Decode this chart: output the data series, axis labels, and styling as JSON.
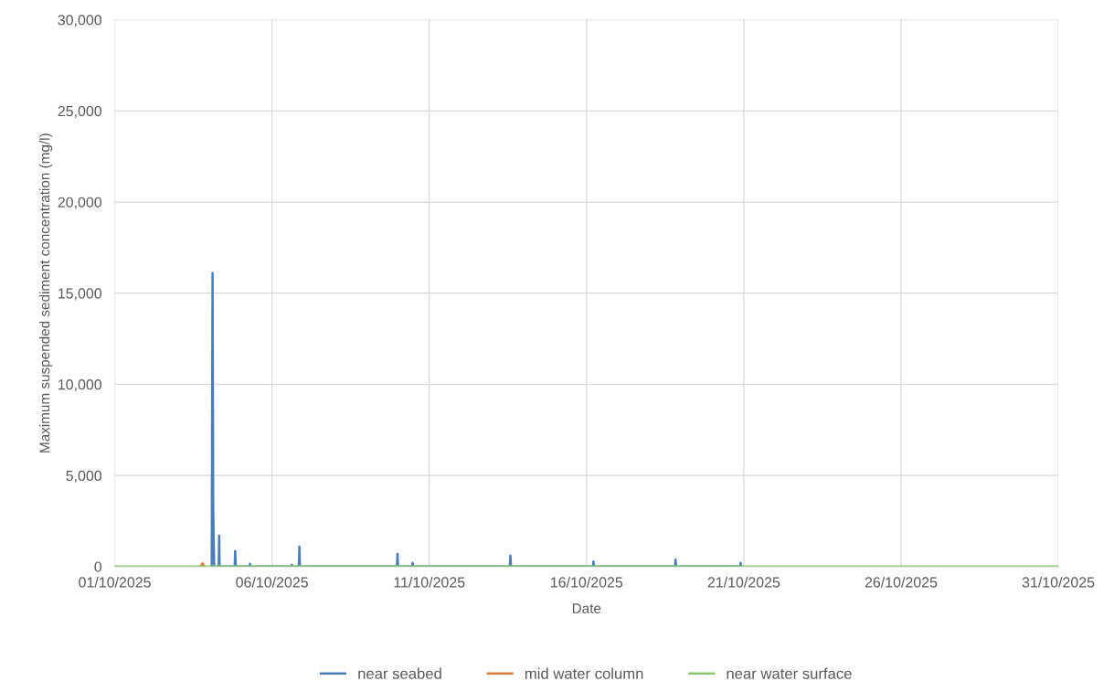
{
  "chart_data": {
    "type": "line",
    "xlabel": "Date",
    "ylabel": "Maximum suspended sediment concentration (mg/l)",
    "x": [
      "2025-10-04T02:00",
      "2025-10-04T02:38",
      "2025-10-04T03:10",
      "2025-10-04T03:50",
      "2025-10-04T07:20",
      "2025-10-04T07:40",
      "2025-10-04T08:00",
      "2025-10-04T19:30",
      "2025-10-04T19:55",
      "2025-10-04T20:20",
      "2025-10-05T06:50",
      "2025-10-05T07:12",
      "2025-10-05T07:35",
      "2025-10-06T14:45",
      "2025-10-06T15:07",
      "2025-10-06T15:30",
      "2025-10-06T20:30",
      "2025-10-06T20:53",
      "2025-10-06T21:15",
      "2025-10-09T23:20",
      "2025-10-09T23:46",
      "2025-10-10T00:10",
      "2025-10-10T10:55",
      "2025-10-10T11:17",
      "2025-10-10T11:40",
      "2025-10-13T13:30",
      "2025-10-13T13:55",
      "2025-10-13T14:20",
      "2025-10-16T04:55",
      "2025-10-16T05:17",
      "2025-10-16T05:40",
      "2025-10-18T19:30",
      "2025-10-18T19:55",
      "2025-10-18T20:20",
      "2025-10-20T21:15",
      "2025-10-20T21:36",
      "2025-10-20T22:00"
    ],
    "series": [
      {
        "name": "near seabed",
        "color": "#4a7ebb",
        "values": [
          0,
          16100,
          3000,
          0,
          0,
          1700,
          0,
          0,
          850,
          0,
          0,
          150,
          0,
          0,
          100,
          0,
          0,
          1100,
          0,
          0,
          700,
          0,
          0,
          200,
          0,
          0,
          600,
          0,
          0,
          280,
          0,
          0,
          380,
          0,
          0,
          200,
          0
        ]
      },
      {
        "name": "mid water column",
        "color": "#e07b39",
        "x": [
          "2025-10-03T17:30",
          "2025-10-03T18:58",
          "2025-10-03T20:30"
        ],
        "values": [
          0,
          180,
          0
        ]
      },
      {
        "name": "near water surface",
        "color": "#8cc66a",
        "x": [
          "2025-10-01T00:00",
          "2025-10-31T00:00"
        ],
        "values": [
          0,
          0
        ]
      }
    ],
    "xlim": [
      "2025-10-01",
      "2025-10-31"
    ],
    "xticks": [
      {
        "value": "2025-10-01",
        "label": "01/10/2025"
      },
      {
        "value": "2025-10-06",
        "label": "06/10/2025"
      },
      {
        "value": "2025-10-11",
        "label": "11/10/2025"
      },
      {
        "value": "2025-10-16",
        "label": "16/10/2025"
      },
      {
        "value": "2025-10-21",
        "label": "21/10/2025"
      },
      {
        "value": "2025-10-26",
        "label": "26/10/2025"
      },
      {
        "value": "2025-10-31",
        "label": "31/10/2025"
      }
    ],
    "ylim": [
      0,
      30000
    ],
    "yticks": [
      {
        "value": 0,
        "label": "0"
      },
      {
        "value": 5000,
        "label": "5,000"
      },
      {
        "value": 10000,
        "label": "10,000"
      },
      {
        "value": 15000,
        "label": "15,000"
      },
      {
        "value": 20000,
        "label": "20,000"
      },
      {
        "value": 25000,
        "label": "25,000"
      },
      {
        "value": 30000,
        "label": "30,000"
      }
    ],
    "grid": true,
    "legend": "bottom",
    "marker": "none",
    "line_style": "solid"
  }
}
